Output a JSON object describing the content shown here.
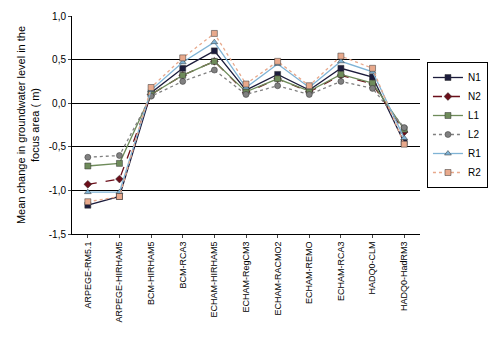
{
  "chart_data": {
    "type": "line",
    "ylabel": "Mean change in groundwater level in the\nfocus area ( m)",
    "categories": [
      "ARPEGE-RM5.1",
      "ARPEGE-HIRHAM5",
      "BCM-HIRHAM5",
      "BCM-RCA3",
      "ECHAM-HIRHAM5",
      "ECHAM-RegCM3",
      "ECHAM-RACMO2",
      "ECHAM-REMO",
      "ECHAM-RCA3",
      "HADQ0-CLM",
      "HADQ0-HadRM3"
    ],
    "series": [
      {
        "name": "N1",
        "color": "#1c1c3c",
        "marker": "square",
        "line_style": "solid",
        "values": [
          -1.17,
          -1.07,
          0.12,
          0.4,
          0.6,
          0.15,
          0.33,
          0.15,
          0.4,
          0.3,
          -0.45
        ]
      },
      {
        "name": "N2",
        "color": "#6b0f1a",
        "marker": "diamond",
        "line_style": "dashed",
        "values": [
          -0.93,
          -0.87,
          0.1,
          0.32,
          0.48,
          0.12,
          0.28,
          0.13,
          0.32,
          0.22,
          -0.33
        ]
      },
      {
        "name": "L1",
        "color": "#6e8b5a",
        "marker": "square",
        "line_style": "solid",
        "values": [
          -0.72,
          -0.69,
          0.1,
          0.32,
          0.48,
          0.13,
          0.28,
          0.14,
          0.33,
          0.23,
          -0.3
        ]
      },
      {
        "name": "L2",
        "color": "#808080",
        "marker": "circle",
        "line_style": "dotted",
        "values": [
          -0.62,
          -0.6,
          0.08,
          0.25,
          0.38,
          0.1,
          0.2,
          0.1,
          0.25,
          0.17,
          -0.28
        ]
      },
      {
        "name": "R1",
        "color": "#7fb3d5",
        "marker": "triangle",
        "line_style": "solid",
        "values": [
          -1.02,
          -1.02,
          0.15,
          0.47,
          0.7,
          0.18,
          0.45,
          0.18,
          0.48,
          0.36,
          -0.4
        ]
      },
      {
        "name": "R2",
        "color": "#e8a98c",
        "marker": "square",
        "line_style": "dotted",
        "values": [
          -1.13,
          -1.07,
          0.18,
          0.52,
          0.8,
          0.22,
          0.48,
          0.2,
          0.54,
          0.4,
          -0.47
        ]
      }
    ],
    "ylim": [
      -1.5,
      1.0
    ],
    "yticks": [
      {
        "value": -1.5,
        "label": "-1,5"
      },
      {
        "value": -1.0,
        "label": "-1,0"
      },
      {
        "value": -0.5,
        "label": "-0,5"
      },
      {
        "value": 0.0,
        "label": "0,0"
      },
      {
        "value": 0.5,
        "label": "0,5"
      },
      {
        "value": 1.0,
        "label": "1,0"
      }
    ],
    "grid": true,
    "legend": "right"
  }
}
